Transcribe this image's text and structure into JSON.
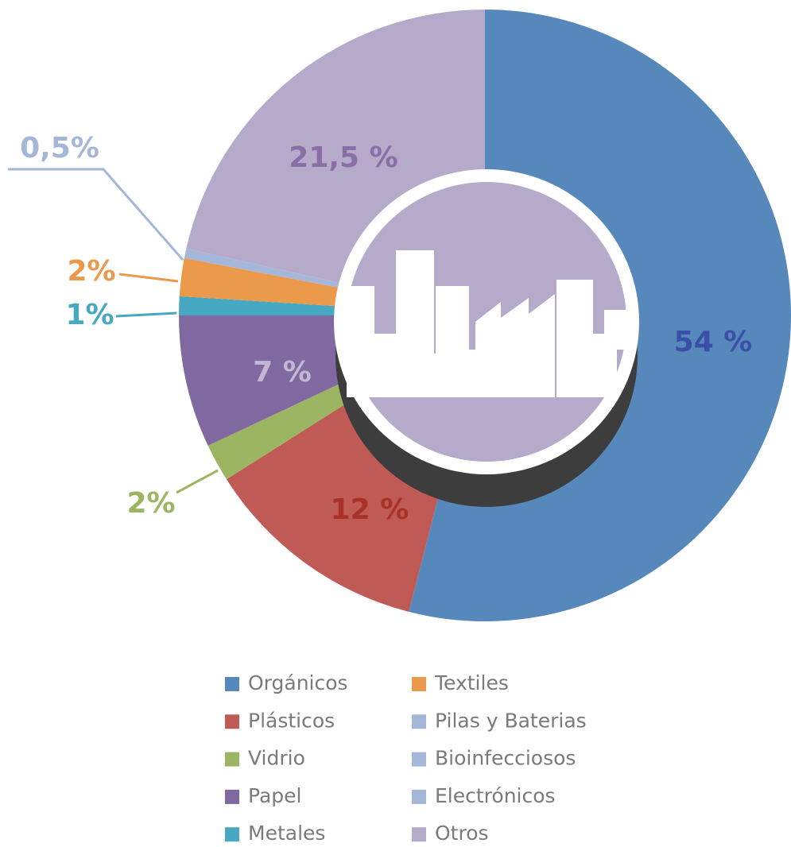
{
  "chart_data": {
    "type": "pie",
    "categories": [
      "Orgánicos",
      "Plásticos",
      "Vidrio",
      "Papel",
      "Metales",
      "Textiles",
      "Pilas y Baterias",
      "Bioinfecciosos",
      "Electrónicos",
      "Otros"
    ],
    "values": [
      54,
      12,
      2,
      7,
      1,
      2,
      0.5,
      0,
      0,
      21.5
    ],
    "value_labels": [
      "54 %",
      "12 %",
      "2%",
      "7 %",
      "1%",
      "2%",
      "0,5%",
      null,
      null,
      "21,5 %"
    ],
    "colors": [
      "#5688bc",
      "#c05a54",
      "#9bb562",
      "#8069a0",
      "#46a9c1",
      "#ea9a4a",
      "#a5b7d9",
      "#a5b7d9",
      "#a5b7d9",
      "#b5aac9"
    ],
    "legend": "bottom"
  }
}
